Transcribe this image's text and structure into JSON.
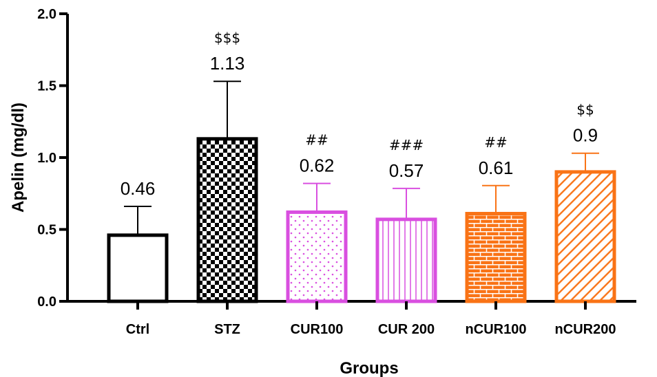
{
  "chart_data": {
    "type": "bar",
    "title": "",
    "xlabel": "Groups",
    "ylabel": "Apelin (mg/dl)",
    "ylim": [
      0,
      2.0
    ],
    "yticks": [
      "0.0",
      "0.5",
      "1.0",
      "1.5",
      "2.0"
    ],
    "categories": [
      "Ctrl",
      "STZ",
      "CUR100",
      "CUR 200",
      "nCUR100",
      "nCUR200"
    ],
    "values": [
      0.46,
      1.13,
      0.62,
      0.57,
      0.61,
      0.9
    ],
    "value_labels": [
      "0.46",
      "1.13",
      "0.62",
      "0.57",
      "0.61",
      "0.9"
    ],
    "error_upper": [
      0.66,
      1.53,
      0.82,
      0.785,
      0.805,
      1.03
    ],
    "significance": [
      "",
      "$$$",
      "##",
      "###",
      "##",
      "$$"
    ],
    "colors": [
      "#000000",
      "#000000",
      "#d94fe0",
      "#d94fe0",
      "#f97316",
      "#f97316"
    ],
    "patterns": [
      "none",
      "checkerboard",
      "dots",
      "vertical-lines",
      "bricks",
      "diagonal-lines"
    ],
    "grid": false
  }
}
